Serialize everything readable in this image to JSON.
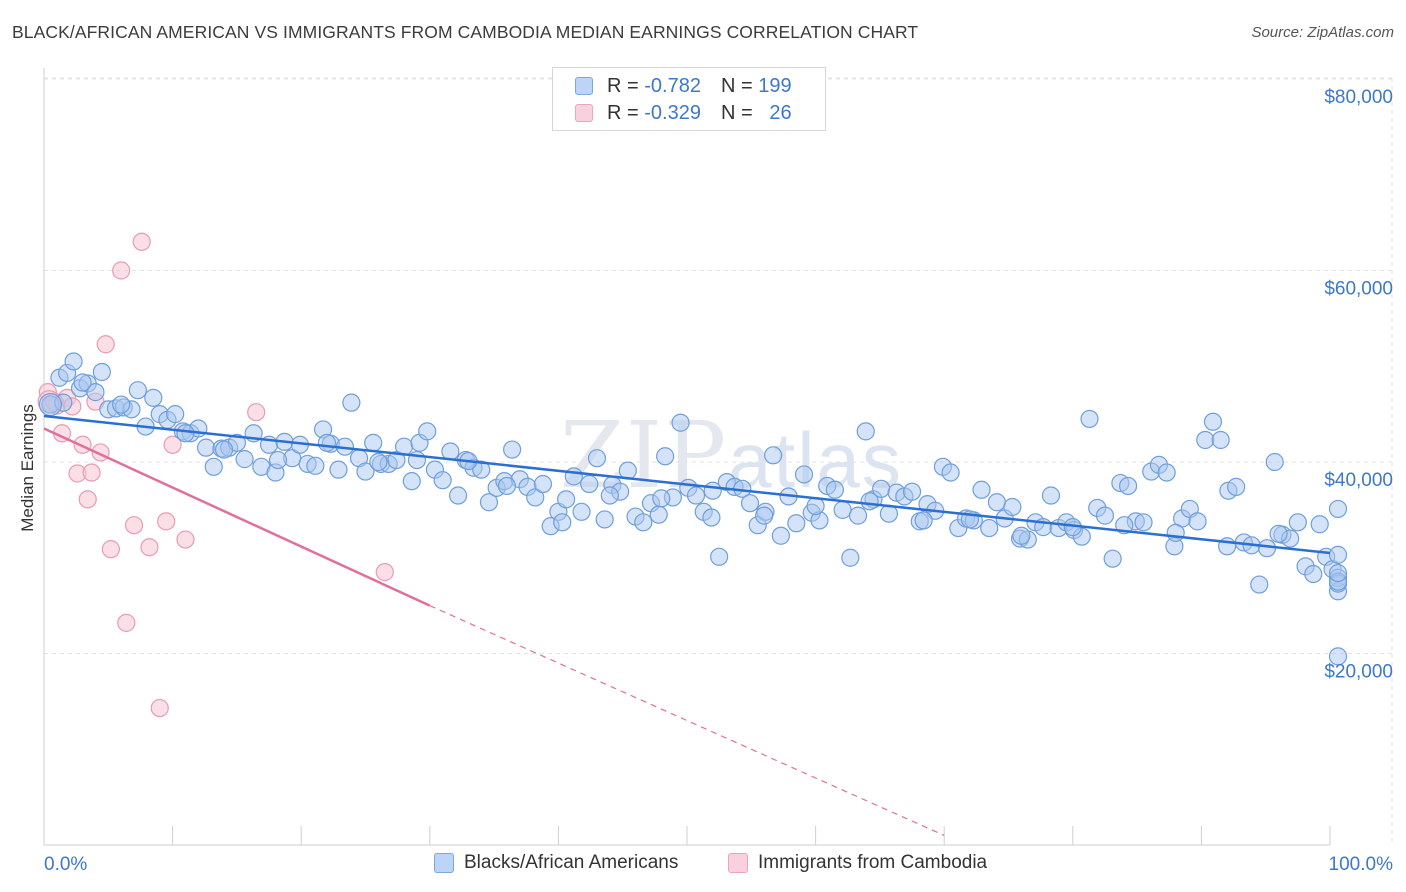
{
  "header": {
    "title": "BLACK/AFRICAN AMERICAN VS IMMIGRANTS FROM CAMBODIA MEDIAN EARNINGS CORRELATION CHART",
    "source": "Source: ZipAtlas.com"
  },
  "watermark": {
    "part1": "ZIP",
    "part2": "atlas"
  },
  "legend": {
    "rows": [
      {
        "r_label": "R = ",
        "r_value": "-0.782",
        "n_label": "N = ",
        "n_value": "199",
        "color": "#8fb5e8"
      },
      {
        "r_label": "R = ",
        "r_value": "-0.329",
        "n_label": "N = ",
        "n_value": "26",
        "color": "#f2a7bf"
      }
    ]
  },
  "bottom_legend": {
    "series1": "Blacks/African Americans",
    "series2": "Immigrants from Cambodia"
  },
  "colors": {
    "blue_fill": "#a9c7ef",
    "blue_stroke": "#6f9fdc",
    "blue_line": "#2a6fd1",
    "pink_fill": "#f7c4d3",
    "pink_stroke": "#e99bb4",
    "pink_line": "#e0709a",
    "grid": "#e3e3e3",
    "axis_text": "#3d78c9"
  },
  "chart_data": {
    "type": "scatter",
    "title": "BLACK/AFRICAN AMERICAN VS IMMIGRANTS FROM CAMBODIA MEDIAN EARNINGS CORRELATION CHART",
    "xlabel": "",
    "ylabel": "Median Earnings",
    "xlim": [
      0,
      100
    ],
    "ylim": [
      0,
      82000
    ],
    "x_tick_labels": [
      "0.0%",
      "100.0%"
    ],
    "y_ticks": [
      20000,
      40000,
      60000,
      80000
    ],
    "y_tick_labels": [
      "$20,000",
      "$40,000",
      "$60,000",
      "$80,000"
    ],
    "grid": true,
    "series": [
      {
        "name": "Blacks/African Americans",
        "r": -0.782,
        "n": 199,
        "trend": {
          "x": [
            0,
            100
          ],
          "y": [
            44800,
            30500
          ]
        },
        "points": [
          [
            0.5,
            46000
          ],
          [
            1.2,
            48800
          ],
          [
            1.8,
            49300
          ],
          [
            2.3,
            50500
          ],
          [
            2.8,
            47700
          ],
          [
            3.4,
            48200
          ],
          [
            4.0,
            47300
          ],
          [
            4.5,
            49400
          ],
          [
            5.0,
            45500
          ],
          [
            5.6,
            45600
          ],
          [
            6.2,
            45700
          ],
          [
            6.8,
            45500
          ],
          [
            7.3,
            47500
          ],
          [
            7.9,
            43700
          ],
          [
            8.5,
            46700
          ],
          [
            9.0,
            45000
          ],
          [
            9.6,
            44400
          ],
          [
            10.2,
            45000
          ],
          [
            10.8,
            43200
          ],
          [
            11.4,
            43000
          ],
          [
            12.0,
            43500
          ],
          [
            12.6,
            41500
          ],
          [
            13.2,
            39500
          ],
          [
            13.8,
            41400
          ],
          [
            14.4,
            41500
          ],
          [
            15.0,
            42000
          ],
          [
            15.6,
            40300
          ],
          [
            16.3,
            43000
          ],
          [
            16.9,
            39500
          ],
          [
            17.5,
            41800
          ],
          [
            18.0,
            38900
          ],
          [
            18.7,
            42100
          ],
          [
            19.3,
            40400
          ],
          [
            19.9,
            41800
          ],
          [
            20.5,
            39800
          ],
          [
            21.1,
            39600
          ],
          [
            21.7,
            43400
          ],
          [
            22.3,
            41900
          ],
          [
            22.9,
            39200
          ],
          [
            23.4,
            41600
          ],
          [
            23.9,
            46200
          ],
          [
            24.5,
            40400
          ],
          [
            25.0,
            39000
          ],
          [
            25.6,
            42000
          ],
          [
            26.2,
            39800
          ],
          [
            26.8,
            39800
          ],
          [
            27.4,
            40200
          ],
          [
            28.0,
            41600
          ],
          [
            28.6,
            38000
          ],
          [
            29.2,
            42000
          ],
          [
            29.8,
            43200
          ],
          [
            30.4,
            39200
          ],
          [
            31.0,
            38100
          ],
          [
            31.6,
            41100
          ],
          [
            32.2,
            36500
          ],
          [
            32.8,
            40200
          ],
          [
            33.4,
            39400
          ],
          [
            34.0,
            39200
          ],
          [
            34.6,
            35800
          ],
          [
            35.2,
            37300
          ],
          [
            35.8,
            38000
          ],
          [
            36.4,
            41300
          ],
          [
            37.0,
            38200
          ],
          [
            37.6,
            37400
          ],
          [
            38.2,
            36300
          ],
          [
            38.8,
            37700
          ],
          [
            39.4,
            33300
          ],
          [
            40.0,
            34800
          ],
          [
            40.6,
            36100
          ],
          [
            41.2,
            38500
          ],
          [
            41.8,
            34800
          ],
          [
            42.4,
            37700
          ],
          [
            43.0,
            40400
          ],
          [
            43.6,
            34000
          ],
          [
            44.2,
            37600
          ],
          [
            44.8,
            36900
          ],
          [
            45.4,
            39100
          ],
          [
            46.0,
            34300
          ],
          [
            46.6,
            33700
          ],
          [
            47.2,
            35700
          ],
          [
            47.8,
            34500
          ],
          [
            48.3,
            40600
          ],
          [
            48.9,
            36300
          ],
          [
            49.5,
            44100
          ],
          [
            50.1,
            37300
          ],
          [
            50.7,
            36500
          ],
          [
            51.3,
            34800
          ],
          [
            51.9,
            34200
          ],
          [
            52.5,
            30100
          ],
          [
            53.1,
            37900
          ],
          [
            53.7,
            37400
          ],
          [
            54.3,
            37200
          ],
          [
            54.9,
            35700
          ],
          [
            55.5,
            33400
          ],
          [
            56.1,
            34800
          ],
          [
            56.7,
            40700
          ],
          [
            57.3,
            32300
          ],
          [
            57.9,
            36400
          ],
          [
            58.5,
            33600
          ],
          [
            59.1,
            38700
          ],
          [
            59.7,
            34700
          ],
          [
            60.3,
            33900
          ],
          [
            60.9,
            37500
          ],
          [
            61.5,
            37100
          ],
          [
            62.1,
            35000
          ],
          [
            62.7,
            30000
          ],
          [
            63.3,
            34400
          ],
          [
            63.9,
            43200
          ],
          [
            64.5,
            36100
          ],
          [
            65.1,
            37200
          ],
          [
            65.7,
            34600
          ],
          [
            66.3,
            36800
          ],
          [
            66.9,
            36400
          ],
          [
            67.5,
            36900
          ],
          [
            68.1,
            33800
          ],
          [
            68.7,
            35600
          ],
          [
            69.3,
            34900
          ],
          [
            69.9,
            39500
          ],
          [
            70.5,
            38900
          ],
          [
            71.1,
            33100
          ],
          [
            71.7,
            34100
          ],
          [
            72.3,
            33900
          ],
          [
            72.9,
            37100
          ],
          [
            73.5,
            33100
          ],
          [
            74.1,
            35800
          ],
          [
            74.7,
            34100
          ],
          [
            75.3,
            35300
          ],
          [
            75.9,
            32000
          ],
          [
            76.5,
            31900
          ],
          [
            77.1,
            33700
          ],
          [
            77.7,
            33200
          ],
          [
            78.3,
            36500
          ],
          [
            78.9,
            33100
          ],
          [
            79.5,
            33700
          ],
          [
            80.1,
            32900
          ],
          [
            80.7,
            32200
          ],
          [
            81.3,
            44500
          ],
          [
            81.9,
            35200
          ],
          [
            82.5,
            34400
          ],
          [
            83.1,
            29900
          ],
          [
            83.7,
            37800
          ],
          [
            84.3,
            37500
          ],
          [
            84.9,
            33800
          ],
          [
            85.5,
            33700
          ],
          [
            86.1,
            39000
          ],
          [
            86.7,
            39700
          ],
          [
            87.3,
            38900
          ],
          [
            87.9,
            31200
          ],
          [
            88.5,
            34100
          ],
          [
            89.1,
            35100
          ],
          [
            89.7,
            33800
          ],
          [
            90.3,
            42300
          ],
          [
            90.9,
            44200
          ],
          [
            91.5,
            42300
          ],
          [
            92.1,
            37000
          ],
          [
            92.7,
            37400
          ],
          [
            93.3,
            31600
          ],
          [
            93.9,
            31300
          ],
          [
            94.5,
            27200
          ],
          [
            95.1,
            31000
          ],
          [
            95.7,
            40000
          ],
          [
            96.3,
            32400
          ],
          [
            96.9,
            32000
          ],
          [
            97.5,
            33700
          ],
          [
            98.1,
            29100
          ],
          [
            98.7,
            28300
          ],
          [
            99.2,
            33500
          ],
          [
            99.7,
            30100
          ],
          [
            100.2,
            28800
          ],
          [
            100.8,
            26500
          ],
          [
            101.5,
            35100
          ],
          [
            102.1,
            27900
          ],
          [
            102.6,
            27300
          ],
          [
            103.2,
            27500
          ],
          [
            103.7,
            28400
          ],
          [
            104.3,
            30300
          ],
          [
            102.0,
            19700
          ],
          [
            3.0,
            48300
          ],
          [
            6.0,
            46000
          ],
          [
            11.0,
            43000
          ],
          [
            14.0,
            41300
          ],
          [
            18.2,
            40200
          ],
          [
            22.0,
            42000
          ],
          [
            26.0,
            40000
          ],
          [
            29.0,
            40200
          ],
          [
            33.0,
            40100
          ],
          [
            36.0,
            37500
          ],
          [
            40.3,
            33700
          ],
          [
            44.0,
            36500
          ],
          [
            48.0,
            36200
          ],
          [
            52.0,
            37000
          ],
          [
            56.0,
            34400
          ],
          [
            60.0,
            35400
          ],
          [
            64.2,
            35900
          ],
          [
            68.4,
            33900
          ],
          [
            72.0,
            34000
          ],
          [
            76.0,
            32300
          ],
          [
            80.0,
            33200
          ],
          [
            84.0,
            33400
          ],
          [
            88.0,
            32600
          ],
          [
            92.0,
            31200
          ],
          [
            96.0,
            32500
          ],
          [
            1.5,
            46200
          ]
        ]
      },
      {
        "name": "Immigrants from Cambodia",
        "r": -0.329,
        "n": 26,
        "trend": {
          "x": [
            0,
            30
          ],
          "y": [
            43500,
            25000
          ]
        },
        "trend_dashed": {
          "x": [
            30,
            70
          ],
          "y": [
            25000,
            1000
          ]
        },
        "points": [
          [
            0.3,
            47300
          ],
          [
            0.6,
            46000
          ],
          [
            1.0,
            45900
          ],
          [
            1.4,
            43000
          ],
          [
            1.8,
            46700
          ],
          [
            2.2,
            45800
          ],
          [
            2.6,
            38800
          ],
          [
            3.0,
            41800
          ],
          [
            3.4,
            36100
          ],
          [
            3.7,
            38900
          ],
          [
            4.0,
            46300
          ],
          [
            4.4,
            41000
          ],
          [
            4.8,
            52300
          ],
          [
            5.2,
            30900
          ],
          [
            6.0,
            60000
          ],
          [
            6.4,
            23200
          ],
          [
            7.0,
            33400
          ],
          [
            7.6,
            63000
          ],
          [
            8.2,
            31100
          ],
          [
            9.0,
            14300
          ],
          [
            9.5,
            33800
          ],
          [
            10.0,
            41800
          ],
          [
            11.0,
            31900
          ],
          [
            16.5,
            45200
          ],
          [
            26.5,
            28500
          ],
          [
            0.8,
            46300
          ]
        ]
      }
    ]
  }
}
